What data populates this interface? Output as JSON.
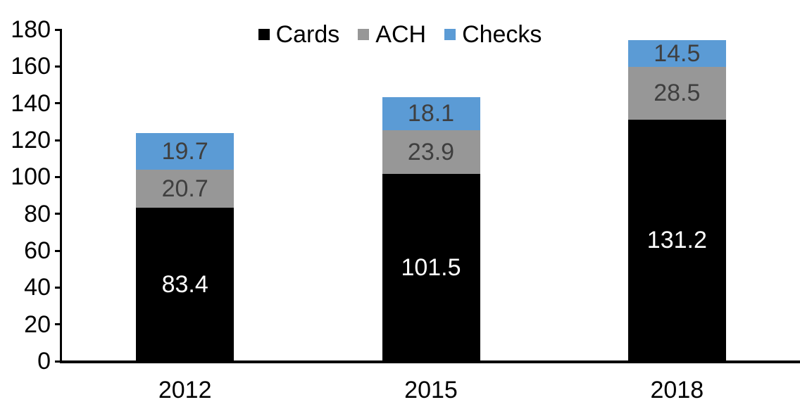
{
  "chart_data": {
    "type": "bar",
    "stacked": true,
    "title": "",
    "xlabel": "",
    "ylabel": "",
    "categories": [
      "2012",
      "2015",
      "2018"
    ],
    "series": [
      {
        "name": "Cards",
        "values": [
          83.4,
          101.5,
          131.2
        ],
        "color": "#000000",
        "label_color": "#ffffff"
      },
      {
        "name": "ACH",
        "values": [
          20.7,
          23.9,
          28.5
        ],
        "color": "#979797",
        "label_color": "#3f3f3f"
      },
      {
        "name": "Checks",
        "values": [
          19.7,
          18.1,
          14.5
        ],
        "color": "#5b9bd5",
        "label_color": "#3f3f3f"
      }
    ],
    "totals": [
      123.8,
      143.5,
      174.2
    ],
    "ylim": [
      0,
      180
    ],
    "yticks": [
      0,
      20,
      40,
      60,
      80,
      100,
      120,
      140,
      160,
      180
    ],
    "grid": false,
    "data_labels": true,
    "label_decimals": 1,
    "legend_position": "top-center",
    "axis_color": "#000000",
    "background_color": "#ffffff"
  }
}
